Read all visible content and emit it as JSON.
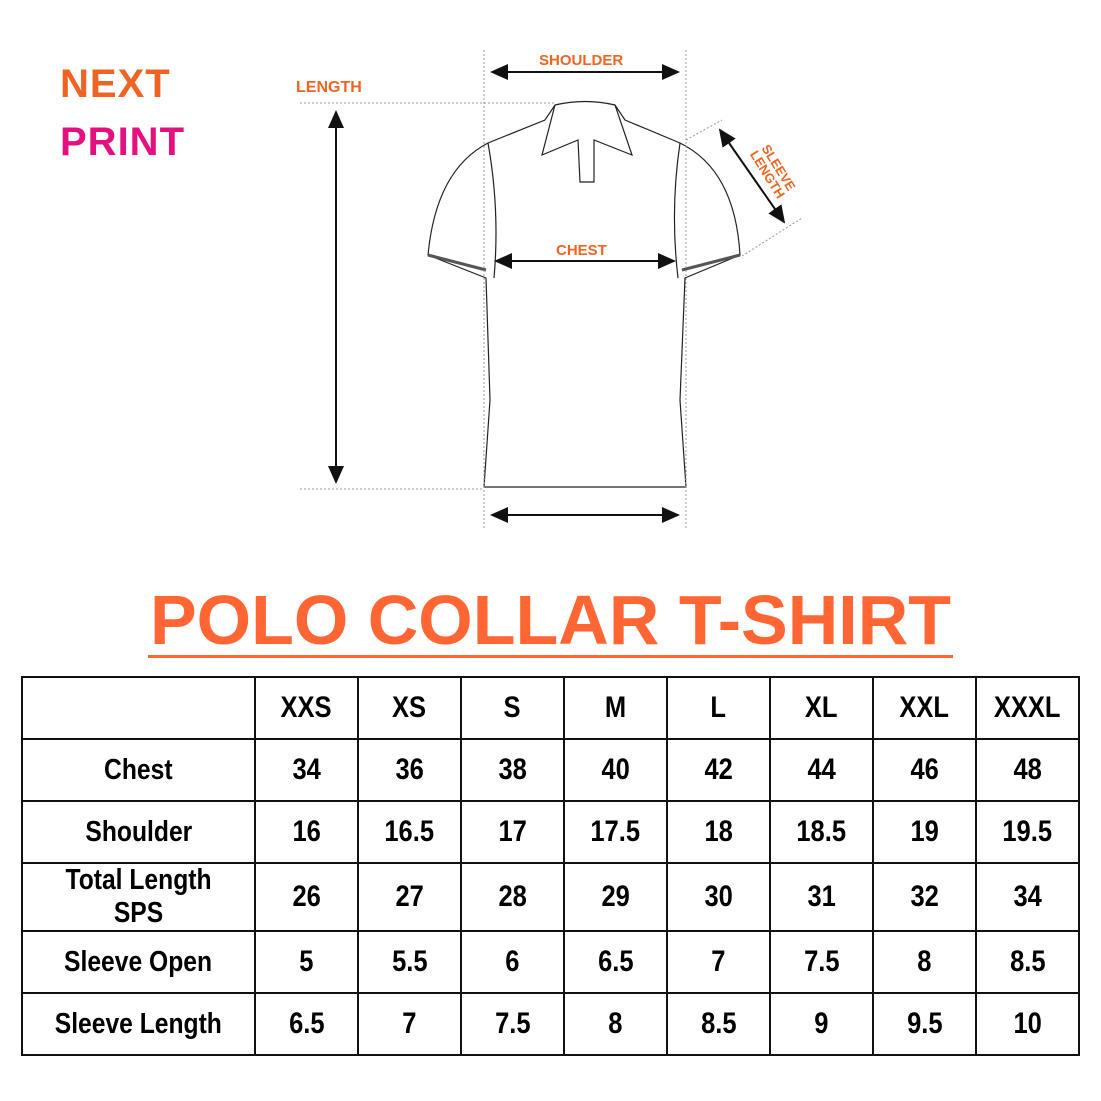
{
  "logo": {
    "line1": "NEXT",
    "line2": "PRINT",
    "colors": {
      "orange": "#ef6423",
      "pink": "#e5107f"
    }
  },
  "diagram": {
    "labels": {
      "length": "LENGTH",
      "shoulder": "SHOULDER",
      "sleeve_length": "SLEEVE LENGTH",
      "chest": "CHEST"
    }
  },
  "title": "POLO COLLAR T-SHIRT",
  "accent_color": "#ff6633",
  "table": {
    "headers": [
      "",
      "XXS",
      "XS",
      "S",
      "M",
      "L",
      "XL",
      "XXL",
      "XXXL"
    ],
    "rows": [
      {
        "label": "Chest",
        "values": [
          "34",
          "36",
          "38",
          "40",
          "42",
          "44",
          "46",
          "48"
        ]
      },
      {
        "label": "Shoulder",
        "values": [
          "16",
          "16.5",
          "17",
          "17.5",
          "18",
          "18.5",
          "19",
          "19.5"
        ]
      },
      {
        "label": "Total Length SPS",
        "values": [
          "26",
          "27",
          "28",
          "29",
          "30",
          "31",
          "32",
          "34"
        ]
      },
      {
        "label": "Sleeve Open",
        "values": [
          "5",
          "5.5",
          "6",
          "6.5",
          "7",
          "7.5",
          "8",
          "8.5"
        ]
      },
      {
        "label": "Sleeve Length",
        "values": [
          "6.5",
          "7",
          "7.5",
          "8",
          "8.5",
          "9",
          "9.5",
          "10"
        ]
      }
    ]
  }
}
